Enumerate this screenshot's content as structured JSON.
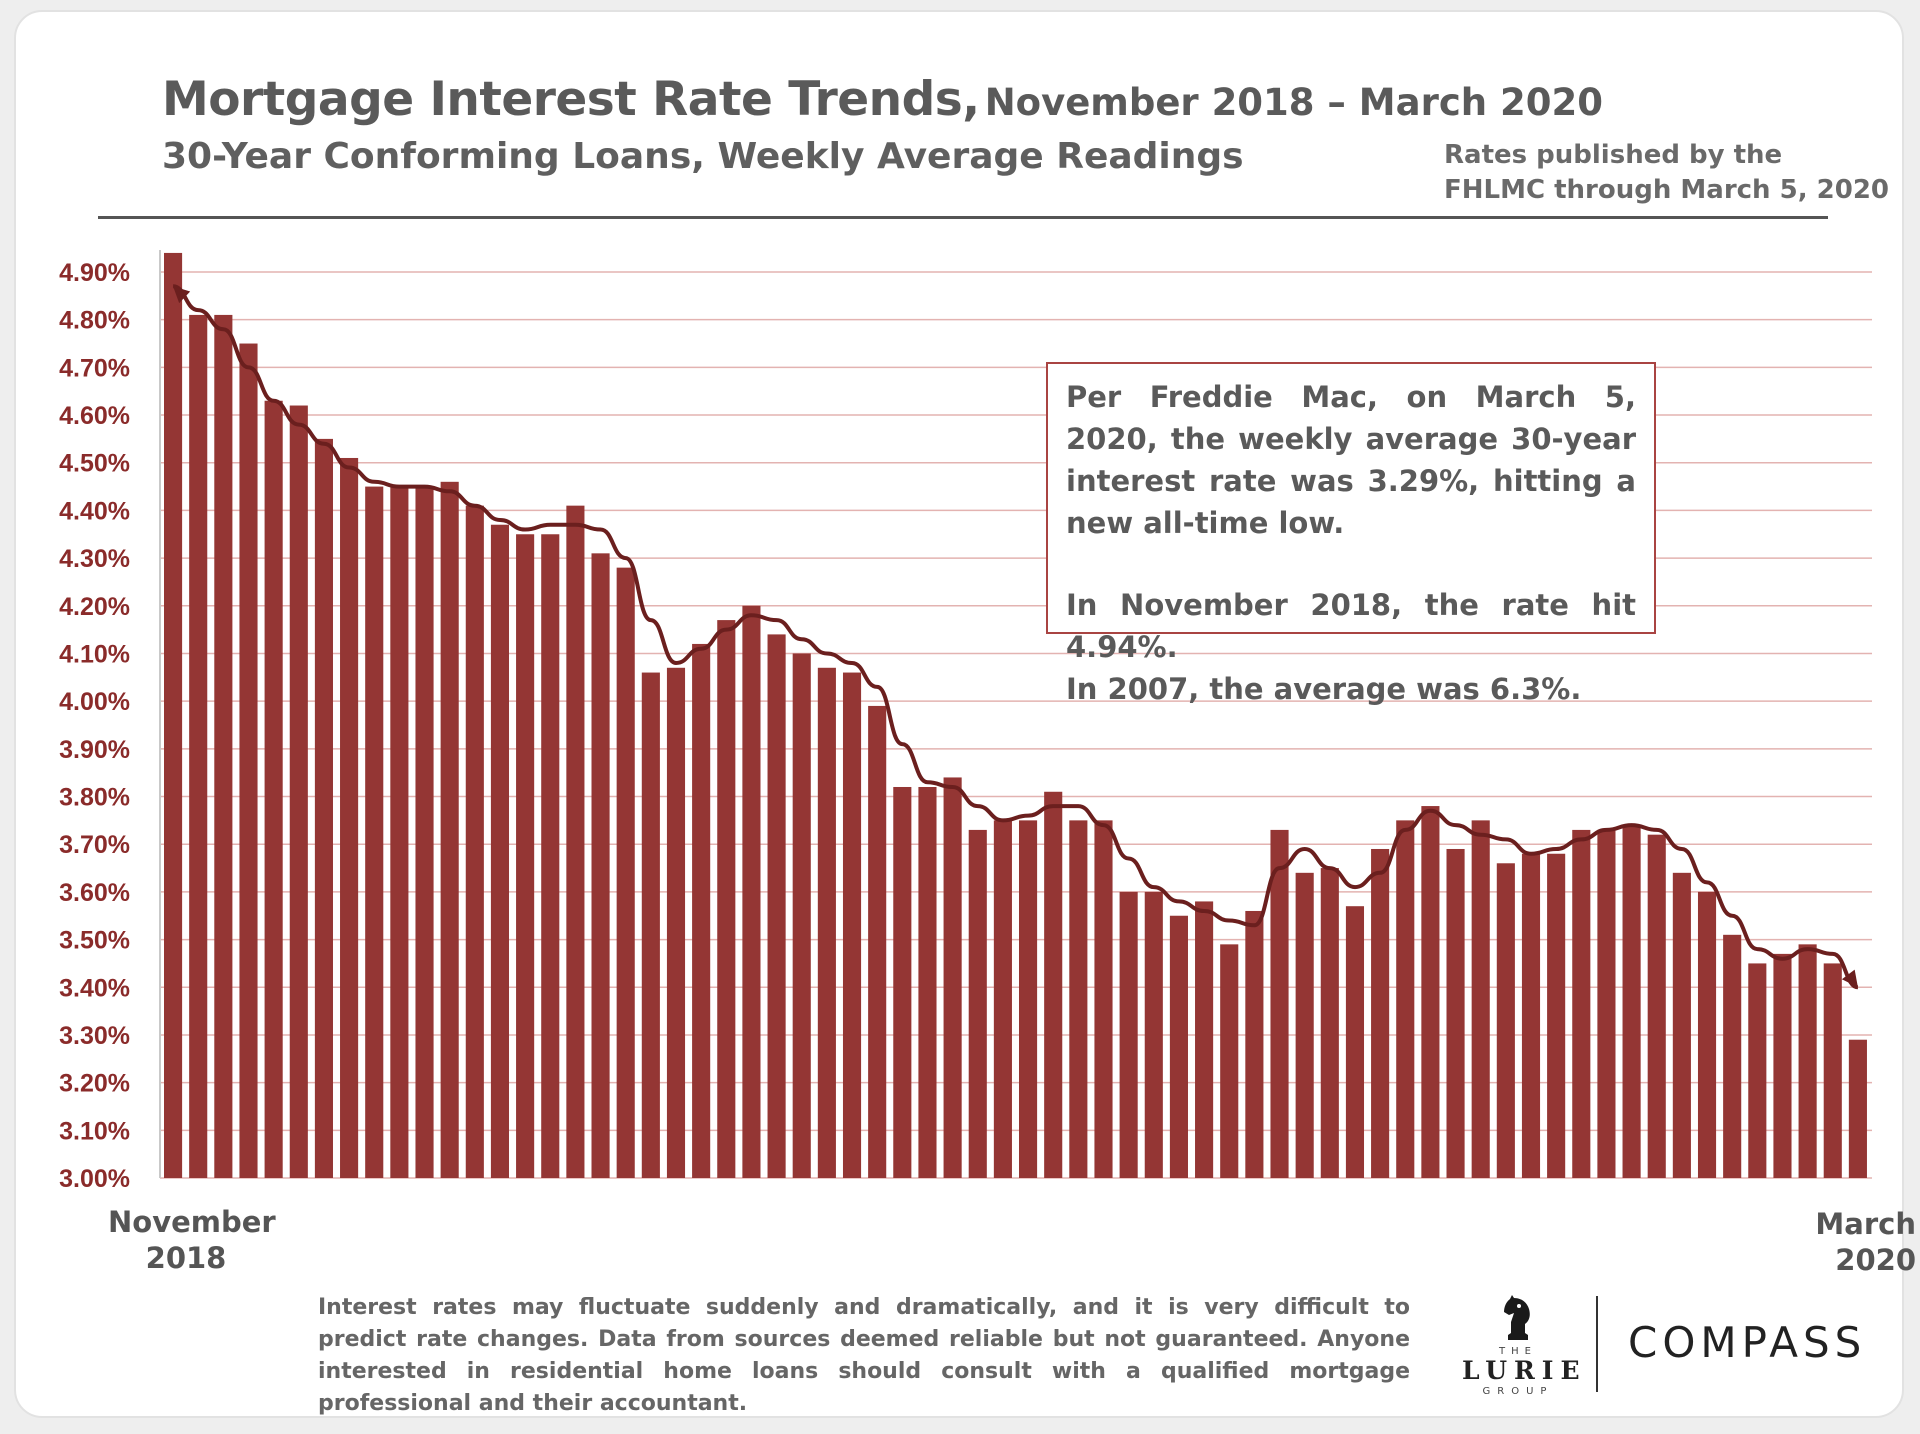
{
  "title": {
    "main": "Mortgage Interest Rate Trends,",
    "range": "November 2018 – March 2020"
  },
  "subtitle": "30-Year Conforming Loans, Weekly Average Readings",
  "source_note": {
    "line1": "Rates published by the",
    "line2": "FHLMC through March 5, 2020"
  },
  "callout": {
    "p1": "Per Freddie Mac, on March 5, 2020, the weekly average 30-year interest rate was 3.29%, hitting a new all-time low.",
    "p2_line1": "In November 2018, the rate hit 4.94%.",
    "p2_line2": "In 2007, the average was 6.3%."
  },
  "x_start": {
    "line1": "November",
    "line2": "2018"
  },
  "x_end": {
    "line1": "March",
    "line2": "2020"
  },
  "disclaimer": "Interest rates may fluctuate suddenly and dramatically, and it is very difficult to predict rate changes. Data from sources deemed reliable but not guaranteed. Anyone interested in residential home loans should consult with a qualified mortgage professional and their accountant.",
  "logos": {
    "lurie_the": "THE",
    "lurie_name": "LURIE",
    "lurie_group": "GROUP",
    "compass": "COMPASS"
  },
  "colors": {
    "bar": "#943634",
    "trend": "#6b1f1e",
    "grid": "#e3b3b1",
    "callout_border": "#a94442",
    "text": "#5a5a5a"
  },
  "chart_data": {
    "type": "bar",
    "title": "Mortgage Interest Rate Trends, November 2018 – March 2020",
    "subtitle": "30-Year Conforming Loans, Weekly Average Readings",
    "ylim": [
      3.0,
      4.9
    ],
    "yticks": [
      "4.90%",
      "4.80%",
      "4.70%",
      "4.60%",
      "4.50%",
      "4.40%",
      "4.30%",
      "4.20%",
      "4.10%",
      "4.00%",
      "3.90%",
      "3.80%",
      "3.70%",
      "3.60%",
      "3.50%",
      "3.40%",
      "3.30%",
      "3.20%",
      "3.10%",
      "3.00%"
    ],
    "ytick_values": [
      4.9,
      4.8,
      4.7,
      4.6,
      4.5,
      4.4,
      4.3,
      4.2,
      4.1,
      4.0,
      3.9,
      3.8,
      3.7,
      3.6,
      3.5,
      3.4,
      3.3,
      3.2,
      3.1,
      3.0
    ],
    "x_range": [
      "November 2018",
      "March 2020"
    ],
    "grid": true,
    "series": [
      {
        "values": [
          4.94,
          4.81,
          4.81,
          4.75,
          4.63,
          4.62,
          4.55,
          4.51,
          4.45,
          4.45,
          4.45,
          4.46,
          4.41,
          4.37,
          4.35,
          4.35,
          4.41,
          4.31,
          4.28,
          4.06,
          4.07,
          4.12,
          4.17,
          4.2,
          4.14,
          4.1,
          4.07,
          4.06,
          3.99,
          3.82,
          3.82,
          3.84,
          3.73,
          3.75,
          3.75,
          3.81,
          3.75,
          3.75,
          3.6,
          3.6,
          3.55,
          3.58,
          3.49,
          3.56,
          3.73,
          3.64,
          3.65,
          3.57,
          3.69,
          3.75,
          3.78,
          3.69,
          3.75,
          3.66,
          3.68,
          3.68,
          3.73,
          3.73,
          3.74,
          3.72,
          3.64,
          3.6,
          3.51,
          3.45,
          3.47,
          3.49,
          3.45,
          3.29
        ]
      },
      {
        "type": "line",
        "values": [
          4.87,
          4.82,
          4.78,
          4.7,
          4.63,
          4.58,
          4.54,
          4.49,
          4.46,
          4.45,
          4.45,
          4.44,
          4.41,
          4.38,
          4.36,
          4.37,
          4.37,
          4.36,
          4.3,
          4.17,
          4.08,
          4.11,
          4.15,
          4.18,
          4.17,
          4.13,
          4.1,
          4.08,
          4.03,
          3.91,
          3.83,
          3.82,
          3.78,
          3.75,
          3.76,
          3.78,
          3.78,
          3.74,
          3.67,
          3.61,
          3.58,
          3.56,
          3.54,
          3.53,
          3.65,
          3.69,
          3.65,
          3.61,
          3.64,
          3.73,
          3.77,
          3.74,
          3.72,
          3.71,
          3.68,
          3.69,
          3.71,
          3.73,
          3.74,
          3.73,
          3.69,
          3.62,
          3.55,
          3.48,
          3.46,
          3.48,
          3.47,
          3.4
        ]
      }
    ]
  }
}
